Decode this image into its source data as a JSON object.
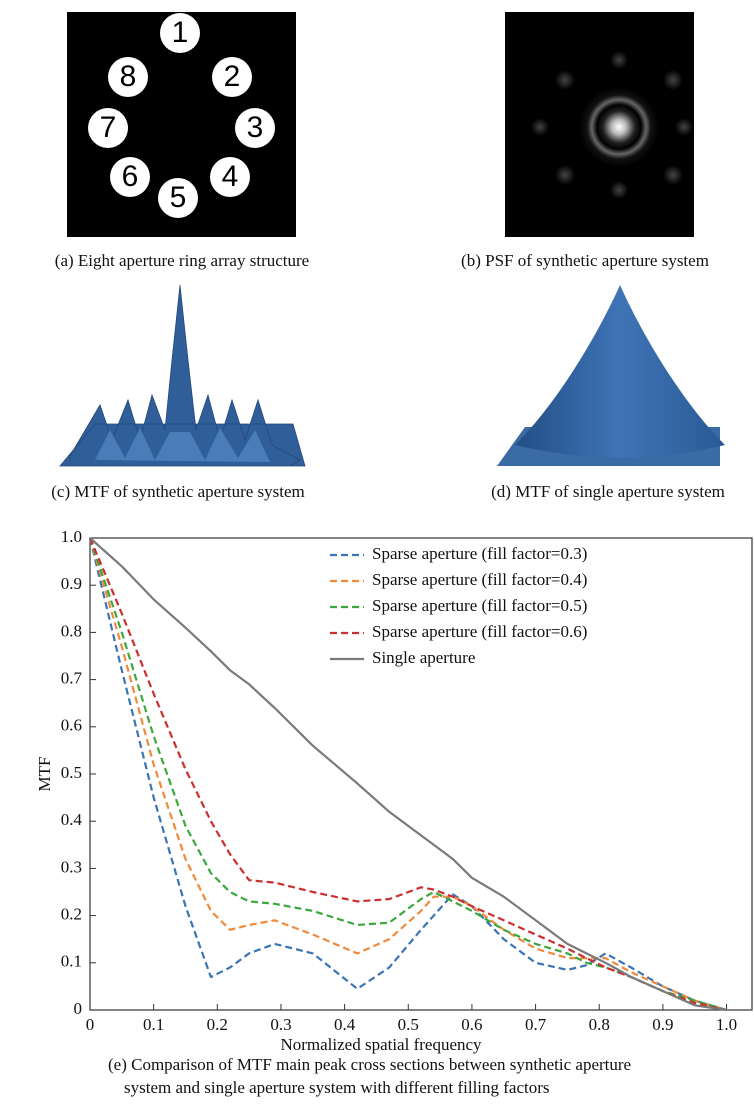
{
  "panels": [
    {
      "caption": "(a) Eight aperture ring array structure",
      "labels": [
        "1",
        "2",
        "3",
        "4",
        "5",
        "6",
        "7",
        "8"
      ]
    },
    {
      "caption": "(b) PSF of synthetic aperture system"
    },
    {
      "caption": "(c) MTF of synthetic aperture system"
    },
    {
      "caption": "(d) MTF of single aperture system"
    }
  ],
  "chart_data": {
    "type": "line",
    "x_label": "Normalized spatial frequency",
    "y_label": "MTF",
    "caption": [
      "(e) Comparison of MTF main peak cross sections between synthetic aperture",
      "system and single aperture system with different filling factors"
    ],
    "x": [
      0,
      0.05,
      0.1,
      0.15,
      0.19,
      0.22,
      0.25,
      0.29,
      0.35,
      0.42,
      0.47,
      0.52,
      0.54,
      0.57,
      0.6,
      0.65,
      0.7,
      0.75,
      0.78,
      0.81,
      0.85,
      0.9,
      0.95,
      1.0
    ],
    "series": [
      {
        "name": "Sparse aperture (fill factor=0.3)",
        "color": "#3a74b4",
        "dashed": true,
        "values": [
          1,
          0.72,
          0.45,
          0.22,
          0.07,
          0.09,
          0.12,
          0.14,
          0.12,
          0.045,
          0.09,
          0.17,
          0.2,
          0.245,
          0.22,
          0.15,
          0.1,
          0.085,
          0.095,
          0.12,
          0.09,
          0.05,
          0.02,
          0
        ]
      },
      {
        "name": "Sparse aperture (fill factor=0.4)",
        "color": "#f08a3c",
        "dashed": true,
        "values": [
          1,
          0.77,
          0.52,
          0.32,
          0.21,
          0.17,
          0.18,
          0.19,
          0.16,
          0.12,
          0.15,
          0.21,
          0.24,
          0.24,
          0.22,
          0.17,
          0.13,
          0.11,
          0.11,
          0.11,
          0.08,
          0.05,
          0.02,
          0
        ]
      },
      {
        "name": "Sparse aperture (fill factor=0.5)",
        "color": "#3ca83c",
        "dashed": true,
        "values": [
          1,
          0.8,
          0.58,
          0.39,
          0.29,
          0.25,
          0.23,
          0.225,
          0.21,
          0.18,
          0.185,
          0.235,
          0.25,
          0.23,
          0.21,
          0.17,
          0.14,
          0.12,
          0.1,
          0.09,
          0.07,
          0.04,
          0.02,
          0
        ]
      },
      {
        "name": "Sparse aperture (fill factor=0.6)",
        "color": "#cc2f2f",
        "dashed": true,
        "values": [
          1,
          0.84,
          0.67,
          0.51,
          0.4,
          0.33,
          0.275,
          0.27,
          0.25,
          0.23,
          0.235,
          0.26,
          0.255,
          0.24,
          0.22,
          0.19,
          0.16,
          0.13,
          0.11,
          0.09,
          0.07,
          0.04,
          0.015,
          0
        ]
      },
      {
        "name": "Single aperture",
        "color": "#7a7a7a",
        "dashed": false,
        "values": [
          1,
          0.94,
          0.87,
          0.81,
          0.76,
          0.72,
          0.69,
          0.64,
          0.56,
          0.48,
          0.42,
          0.37,
          0.35,
          0.32,
          0.28,
          0.24,
          0.19,
          0.14,
          0.12,
          0.1,
          0.07,
          0.04,
          0.01,
          0
        ]
      }
    ],
    "xlim": [
      0,
      1.04
    ],
    "ylim": [
      0,
      1.0
    ],
    "xticks": [
      0,
      0.1,
      0.2,
      0.3,
      0.4,
      0.5,
      0.6,
      0.7,
      0.8,
      0.9,
      {
        "value": 1,
        "label": "1.0"
      }
    ],
    "yticks": [
      0,
      0.1,
      0.2,
      0.3,
      0.4,
      0.5,
      0.6,
      0.7,
      0.8,
      0.9,
      {
        "value": 1,
        "label": "1.0"
      }
    ],
    "legend": "upper right",
    "grid": false
  }
}
